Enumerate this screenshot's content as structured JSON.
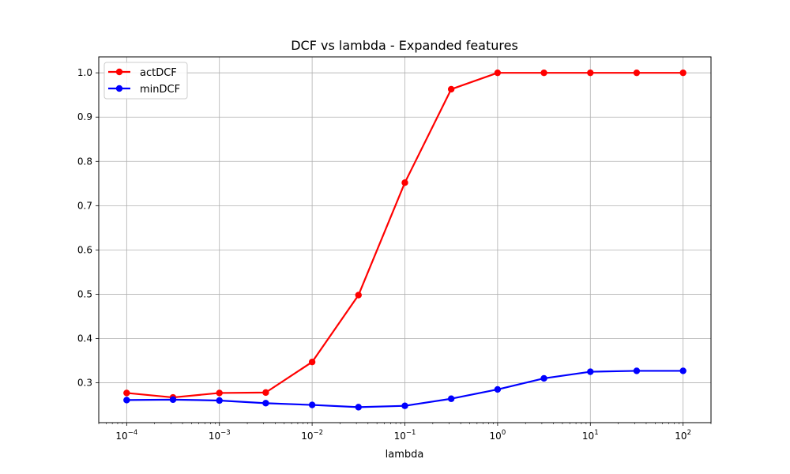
{
  "chart_data": {
    "type": "line",
    "title": "DCF vs lambda - Expanded features",
    "xlabel": "lambda",
    "ylabel": "",
    "xscale": "log",
    "xlim": [
      5e-05,
      200
    ],
    "ylim": [
      0.21,
      1.036
    ],
    "grid": true,
    "legend_position": "top-left",
    "x": [
      0.0001,
      0.000316,
      0.001,
      0.00316,
      0.01,
      0.0316,
      0.1,
      0.316,
      1,
      3.16,
      10,
      31.6,
      100
    ],
    "x_ticks": [
      {
        "value": 0.0001,
        "base": "10",
        "exp": "−4"
      },
      {
        "value": 0.001,
        "base": "10",
        "exp": "−3"
      },
      {
        "value": 0.01,
        "base": "10",
        "exp": "−2"
      },
      {
        "value": 0.1,
        "base": "10",
        "exp": "−1"
      },
      {
        "value": 1,
        "base": "10",
        "exp": "0"
      },
      {
        "value": 10,
        "base": "10",
        "exp": "1"
      },
      {
        "value": 100,
        "base": "10",
        "exp": "2"
      }
    ],
    "y_ticks": [
      "0.3",
      "0.4",
      "0.5",
      "0.6",
      "0.7",
      "0.8",
      "0.9",
      "1.0"
    ],
    "series": [
      {
        "name": "actDCF",
        "color": "#ff0000",
        "marker": "circle",
        "values": [
          0.277,
          0.267,
          0.277,
          0.278,
          0.347,
          0.498,
          0.752,
          0.963,
          1.0,
          1.0,
          1.0,
          1.0,
          1.0
        ]
      },
      {
        "name": "minDCF",
        "color": "#0000ff",
        "marker": "circle",
        "values": [
          0.261,
          0.262,
          0.26,
          0.254,
          0.25,
          0.245,
          0.248,
          0.264,
          0.285,
          0.31,
          0.325,
          0.327,
          0.327
        ]
      }
    ]
  }
}
